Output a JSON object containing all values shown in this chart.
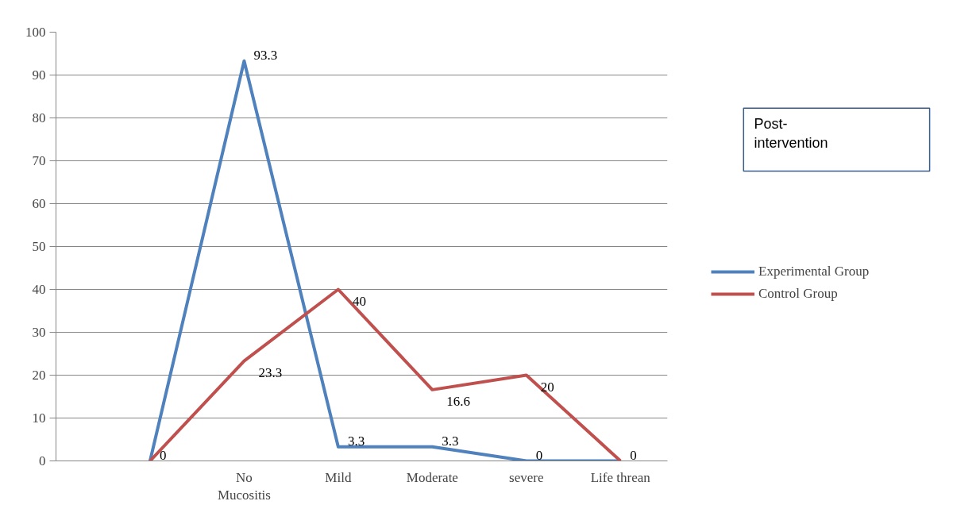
{
  "chart_data": {
    "type": "line",
    "categories": [
      null,
      "No\nMucositis",
      "Mild",
      "Moderate",
      "severe",
      "Life threan"
    ],
    "series": [
      {
        "name": "Experimental Group",
        "color": "#4f81bd",
        "values": [
          0,
          93.3,
          3.3,
          3.3,
          0,
          0
        ],
        "value_labels": [
          "0",
          "93.3",
          "3.3",
          "3.3",
          "0",
          "0"
        ]
      },
      {
        "name": "Control Group",
        "color": "#c0504d",
        "values": [
          0,
          23.3,
          40,
          16.6,
          20,
          0
        ],
        "value_labels": [
          null,
          "23.3",
          "40",
          "16.6",
          "20",
          null
        ]
      }
    ],
    "ylim": [
      0,
      100
    ],
    "yticks": [
      0,
      10,
      20,
      30,
      40,
      50,
      60,
      70,
      80,
      90,
      100
    ],
    "grid": "y",
    "legend": "right",
    "marker": "none",
    "line_style": "solid",
    "annotations": [
      "Post-\nintervention"
    ]
  }
}
